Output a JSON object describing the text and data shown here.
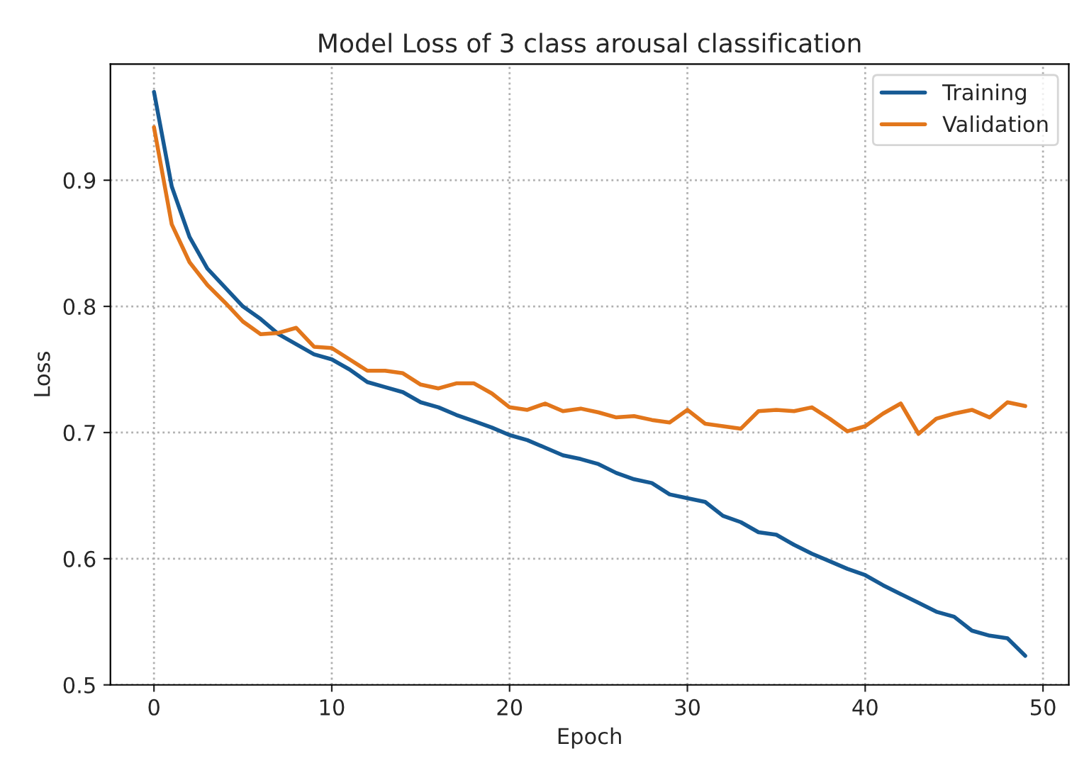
{
  "chart_data": {
    "type": "line",
    "title": "Model Loss of 3 class arousal classification",
    "xlabel": "Epoch",
    "ylabel": "Loss",
    "x": [
      0,
      1,
      2,
      3,
      4,
      5,
      6,
      7,
      8,
      9,
      10,
      11,
      12,
      13,
      14,
      15,
      16,
      17,
      18,
      19,
      20,
      21,
      22,
      23,
      24,
      25,
      26,
      27,
      28,
      29,
      30,
      31,
      32,
      33,
      34,
      35,
      36,
      37,
      38,
      39,
      40,
      41,
      42,
      43,
      44,
      45,
      46,
      47,
      48,
      49
    ],
    "series": [
      {
        "name": "Training",
        "color": "#165a94",
        "values": [
          0.97,
          0.895,
          0.855,
          0.83,
          0.815,
          0.8,
          0.79,
          0.778,
          0.77,
          0.762,
          0.758,
          0.75,
          0.74,
          0.736,
          0.732,
          0.724,
          0.72,
          0.714,
          0.709,
          0.704,
          0.698,
          0.694,
          0.688,
          0.682,
          0.679,
          0.675,
          0.668,
          0.663,
          0.66,
          0.651,
          0.648,
          0.645,
          0.634,
          0.629,
          0.621,
          0.619,
          0.611,
          0.604,
          0.598,
          0.592,
          0.587,
          0.579,
          0.572,
          0.565,
          0.558,
          0.554,
          0.543,
          0.539,
          0.537,
          0.523
        ]
      },
      {
        "name": "Validation",
        "color": "#e2761b",
        "values": [
          0.942,
          0.865,
          0.835,
          0.817,
          0.803,
          0.788,
          0.778,
          0.779,
          0.783,
          0.768,
          0.767,
          0.758,
          0.749,
          0.749,
          0.747,
          0.738,
          0.735,
          0.739,
          0.739,
          0.731,
          0.72,
          0.718,
          0.723,
          0.717,
          0.719,
          0.716,
          0.712,
          0.713,
          0.71,
          0.708,
          0.718,
          0.707,
          0.705,
          0.703,
          0.717,
          0.718,
          0.717,
          0.72,
          0.711,
          0.701,
          0.705,
          0.715,
          0.723,
          0.699,
          0.711,
          0.715,
          0.718,
          0.712,
          0.724,
          0.721
        ]
      }
    ],
    "xlim": [
      -2.45,
      51.45
    ],
    "ylim": [
      0.5,
      0.992
    ],
    "xticks": [
      0,
      10,
      20,
      30,
      40,
      50
    ],
    "yticks": [
      0.5,
      0.6,
      0.7,
      0.8,
      0.9
    ],
    "grid": true,
    "line_style": "solid",
    "legend": "top right"
  }
}
